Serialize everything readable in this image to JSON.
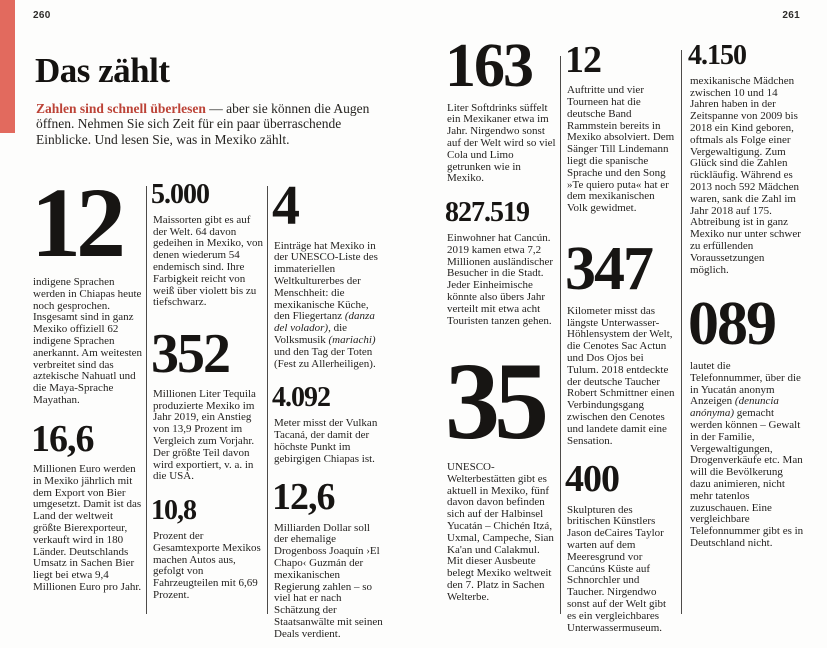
{
  "page": {
    "left_number": "260",
    "right_number": "261"
  },
  "header": {
    "title": "Das zählt",
    "intro_lead": "Zahlen sind schnell überlesen",
    "intro_rest": " — aber sie können die Augen öffnen. Nehmen Sie sich Zeit für ein paar überraschende Einblicke. Und lesen Sie, was in Mexiko zählt."
  },
  "colors": {
    "accent_bar": "#e26a5e",
    "lead_red": "#bc4337",
    "text": "#1e1c1a"
  },
  "columns": [
    {
      "stats": [
        {
          "number": "12",
          "size": "s5",
          "text": "indigene Sprachen werden in Chiapas heute noch gesprochen. Insgesamt sind in ganz Mexiko offiziell 62 indigene Sprachen anerkannt. Am weitesten verbreitet sind das aztekische Nahuatl und die Maya-Sprache Mayathan."
        },
        {
          "number": "16,6",
          "size": "s2",
          "text": "Millionen Euro werden in Mexiko jährlich mit dem Export von Bier umgesetzt. Damit ist das Land der weltweit größte Bierexporteur, verkauft wird in 180 Länder. Deutschlands Umsatz in Sachen Bier liegt bei etwa 9,4 Millionen Euro pro Jahr."
        }
      ]
    },
    {
      "stats": [
        {
          "number": "5.000",
          "size": "s1",
          "text": "Maissorten gibt es auf der Welt. 64 davon gedeihen in Mexiko, von denen wiederum 54 endemisch sind. Ihre Farbigkeit reicht von weiß über violett bis zu tiefschwarz."
        },
        {
          "number": "352",
          "size": "s3",
          "text": "Millionen Liter Tequila produzierte Mexiko im Jahr 2019, ein Anstieg von 13,9 Prozent im Vergleich zum Vorjahr. Der größte Teil davon wird exportiert, v. a. in die USA."
        },
        {
          "number": "10,8",
          "size": "s1",
          "text": "Prozent der Gesamtexporte Mexikos machen Autos aus, gefolgt von Fahrzeugteilen mit 6,69 Prozent."
        }
      ]
    },
    {
      "stats": [
        {
          "number": "4",
          "size": "s3",
          "text": "Einträge hat Mexiko in der UNESCO-Liste des immateriellen Weltkulturerbes der Menschheit: die mexikanische Küche, den Fliegertanz <i>(danza del volador)</i>, die Volksmusik <i>(mariachi)</i> und den Tag der Toten (Fest zu Allerheiligen)."
        },
        {
          "number": "4.092",
          "size": "s1",
          "text": "Meter misst der Vulkan Tacaná, der damit der höchste Punkt im gebirgigen Chiapas ist."
        },
        {
          "number": "12,6",
          "size": "s2",
          "text": "Milliarden Dollar soll der ehemalige Drogenboss Joaquín ›El Chapo‹ Guzmán der mexikanischen Regierung zahlen – so viel hat er nach Schätzung der Staatsanwälte mit seinen Deals verdient."
        }
      ]
    },
    {
      "stats": [
        {
          "number": "163",
          "size": "s4",
          "text": "Liter Softdrinks süffelt ein Mexikaner etwa im Jahr. Nirgendwo sonst auf der Welt wird so viel Cola und Limo getrunken wie in Mexiko."
        },
        {
          "number": "827.519",
          "size": "s1",
          "text": "Einwohner hat Cancún. 2019 kamen etwa 7,2 Millionen ausländischer Besucher in die Stadt. Jeder Einheimische könnte also übers Jahr verteilt mit etwa acht Touristen tanzen gehen."
        },
        {
          "number": "35",
          "size": "s6",
          "text": "UNESCO-Welterbestätten gibt es aktuell in Mexiko, fünf davon davon befinden sich auf der Halbinsel Yucatán – Chichén Itzá, Uxmal, Campeche, Sian Ka'an und Calakmul. Mit dieser Ausbeute belegt Mexiko weltweit den 7. Platz in Sachen Welterbe."
        }
      ]
    },
    {
      "stats": [
        {
          "number": "12",
          "size": "s2",
          "text": "Auftritte und vier Tourneen hat die deutsche Band Rammstein bereits in Mexiko absolviert. Dem Sänger Till Lindemann liegt die spanische Sprache und den Song »Te quiero puta« hat er dem mexikanischen Volk gewidmet."
        },
        {
          "number": "347",
          "size": "s4",
          "text": "Kilometer misst das längste Unterwasser-Höhlensystem der Welt, die Cenotes Sac Actun und Dos Ojos bei Tulum. 2018 entdeckte der deutsche Taucher Robert Schmittner einen Verbindungsgang zwischen den Cenotes und landete damit eine Sensation."
        },
        {
          "number": "400",
          "size": "s2",
          "text": "Skulpturen des britischen Künstlers Jason deCaires Taylor warten auf dem Meeresgrund vor Cancúns Küste auf Schnorchler und Taucher. Nirgendwo sonst auf der Welt gibt es ein vergleichbares Unterwassermuseum."
        }
      ]
    },
    {
      "stats": [
        {
          "number": "4.150",
          "size": "s1",
          "text": "mexikanische Mädchen zwischen 10 und 14 Jahren haben in der Zeitspanne von 2009 bis 2018 ein Kind geboren, oftmals als Folge einer Vergewaltigung. Zum Glück sind die Zahlen rückläufig. Während es 2013 noch 592 Mädchen waren, sank die Zahl im Jahr 2018 auf 175. Abtreibung ist in ganz Mexiko nur unter schwer zu erfüllenden Voraussetzungen möglich."
        },
        {
          "number": "089",
          "size": "s4",
          "text": "lautet die Telefonnummer, über die in Yucatán anonym Anzeigen <i>(denuncia anónyma)</i> gemacht werden können – Gewalt in der Familie, Vergewaltigungen, Drogenverkäufe etc. Man will die Bevölkerung dazu animieren, nicht mehr tatenlos zuzuschauen. Eine vergleichbare Telefonnummer gibt es in Deutschland nicht."
        }
      ]
    }
  ]
}
